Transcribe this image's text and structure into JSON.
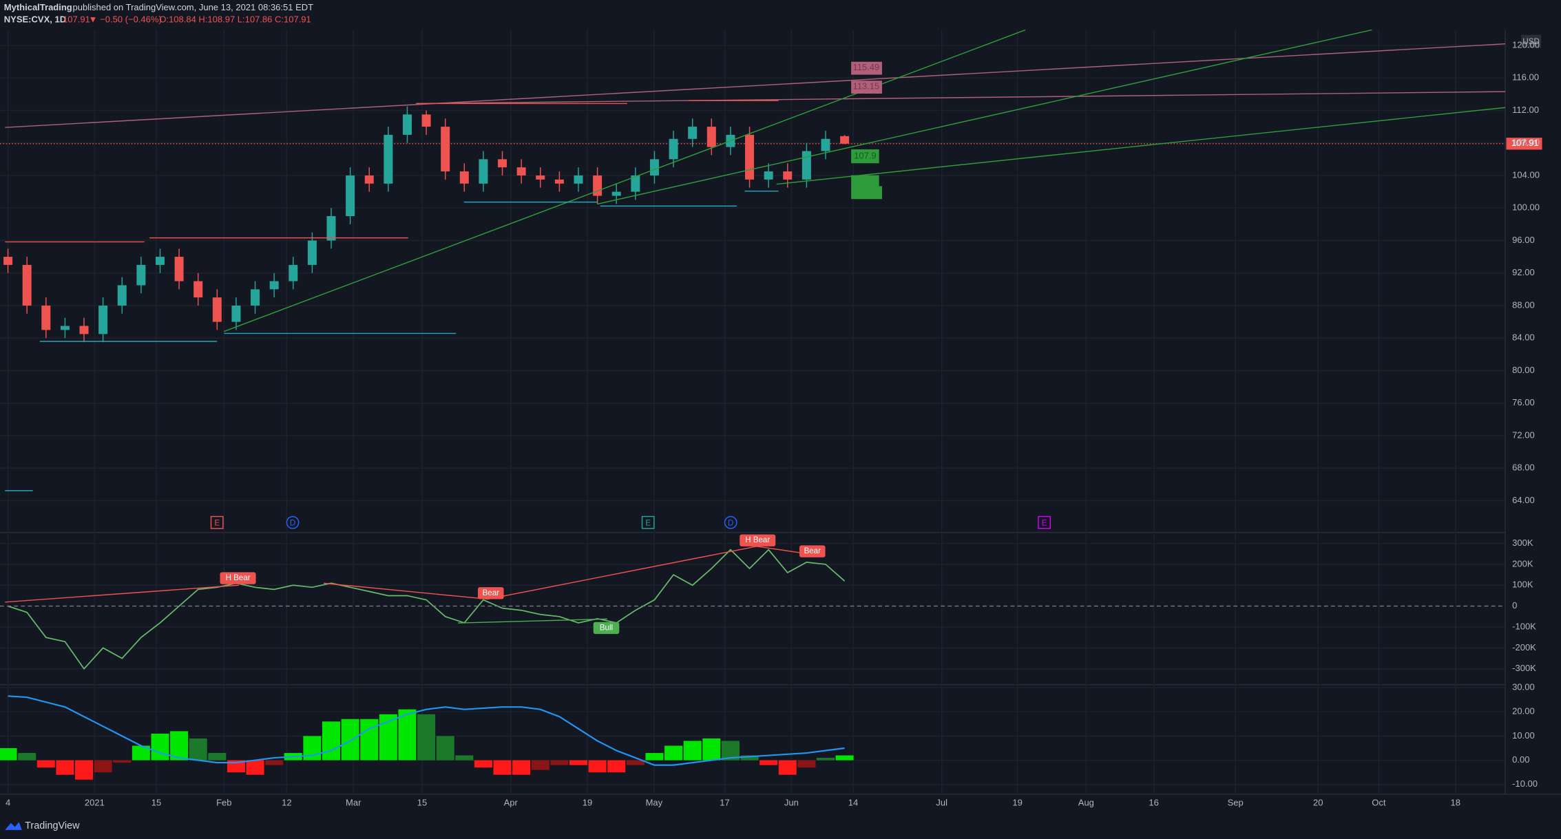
{
  "header": {
    "publisher": "MythicalTrading",
    "published": "published on TradingView.com, June 13, 2021 08:36:51 EDT",
    "symbol": "NYSE:CVX, 1D",
    "last": "107.91",
    "change": "▼ −0.50 (−0.46%)",
    "ohlc": "O:108.84 H:108.97 L:107.86 C:107.91"
  },
  "price_pane": {
    "currency": "USD",
    "ylim": [
      60.1,
      121.9
    ],
    "yticks": [
      {
        "value": 64,
        "label": "64.00"
      },
      {
        "value": 68,
        "label": "68.00"
      },
      {
        "value": 72,
        "label": "72.00"
      },
      {
        "value": 76,
        "label": "76.00"
      },
      {
        "value": 80,
        "label": "80.00"
      },
      {
        "value": 84,
        "label": "84.00"
      },
      {
        "value": 88,
        "label": "88.00"
      },
      {
        "value": 92,
        "label": "92.00"
      },
      {
        "value": 96,
        "label": "96.00"
      },
      {
        "value": 100,
        "label": "100.00"
      },
      {
        "value": 104,
        "label": "104.00"
      },
      {
        "value": 108,
        "label": "108.00"
      },
      {
        "value": 112,
        "label": "112.00"
      },
      {
        "value": 116,
        "label": "116.00"
      },
      {
        "value": 120,
        "label": "120.00"
      }
    ],
    "last_price": {
      "value": 107.91,
      "label": "107.91"
    },
    "up_color": "#26a69a",
    "down_color": "#ef5350",
    "candles": {
      "open": [
        94,
        93,
        88,
        85,
        85.5,
        84.5,
        88,
        90.5,
        93,
        94,
        91,
        89,
        86,
        88,
        90,
        91,
        93,
        96,
        99,
        104,
        103,
        109,
        111.5,
        110,
        104.5,
        103,
        106,
        105,
        104,
        103.5,
        103,
        104,
        101.5,
        102,
        104,
        106,
        108.5,
        110,
        107.5,
        109,
        103.5,
        104.5,
        103.5,
        107,
        108.84
      ],
      "high": [
        95,
        94,
        89,
        86.5,
        86.5,
        89,
        91.5,
        94,
        95,
        95,
        92,
        90,
        89,
        91,
        92,
        94,
        97,
        100,
        105,
        105,
        110,
        112.5,
        112,
        111,
        105.5,
        107,
        107,
        106,
        105,
        104.5,
        105,
        105,
        103,
        105,
        107,
        109.5,
        111,
        111,
        110,
        110,
        105.5,
        105.5,
        108,
        109.5,
        108.97
      ],
      "low": [
        92,
        87,
        84,
        84,
        83.5,
        83.5,
        87,
        89.5,
        92,
        90,
        88,
        85,
        85,
        87,
        89,
        90,
        92,
        95,
        98,
        102,
        102,
        108,
        109,
        103.5,
        102,
        102,
        104,
        103,
        102.5,
        102,
        102,
        100.5,
        100.5,
        101,
        103,
        105,
        107.5,
        106.5,
        106.5,
        102.5,
        102.5,
        102.5,
        102.5,
        106,
        107.86
      ],
      "close": [
        93,
        88,
        85,
        85.5,
        84.5,
        88,
        90.5,
        93,
        94,
        91,
        89,
        86,
        88,
        90,
        91,
        93,
        96,
        99,
        104,
        103,
        109,
        111.5,
        110,
        104.5,
        103,
        106,
        105,
        104,
        103.5,
        103,
        104,
        101.5,
        102,
        104,
        106,
        108.5,
        110,
        107.5,
        109,
        103.5,
        104.5,
        103.5,
        107,
        108.5,
        107.91
      ]
    },
    "drawing_labels": [
      "115.49",
      "113.15",
      "107.9"
    ],
    "events": [
      "E",
      "D",
      "E",
      "D",
      "E"
    ]
  },
  "oscillator_pane": {
    "ylim": [
      -376000,
      343000
    ],
    "yticks": [
      {
        "value": 300000,
        "label": "300K"
      },
      {
        "value": 200000,
        "label": "200K"
      },
      {
        "value": 100000,
        "label": "100K"
      },
      0,
      {
        "value": -100000,
        "label": "-100K"
      },
      {
        "value": -200000,
        "label": "-200K"
      },
      {
        "value": -300000,
        "label": "-300K"
      }
    ],
    "color": "#66bb6a",
    "values": [
      0,
      -30000,
      -150000,
      -170000,
      -300000,
      -200000,
      -250000,
      -150000,
      -80000,
      0,
      80000,
      90000,
      110000,
      90000,
      80000,
      100000,
      90000,
      110000,
      90000,
      70000,
      50000,
      50000,
      30000,
      -50000,
      -80000,
      30000,
      -10000,
      -20000,
      -40000,
      -50000,
      -80000,
      -60000,
      -80000,
      -20000,
      30000,
      150000,
      100000,
      180000,
      270000,
      180000,
      270000,
      160000,
      210000,
      200000,
      120000
    ],
    "divergence_labels": [
      "H Bear",
      "Bear",
      "Bull",
      "H Bear",
      "Bear"
    ]
  },
  "macd_pane": {
    "ylim": [
      -14,
      31.2
    ],
    "yticks": [
      {
        "value": 30,
        "label": "30.00"
      },
      {
        "value": 20,
        "label": "20.00"
      },
      {
        "value": 10,
        "label": "10.00"
      },
      {
        "value": 0,
        "label": "0.00"
      },
      {
        "value": -10,
        "label": "-10.00"
      }
    ],
    "histogram": [
      5,
      3,
      -3,
      -6,
      -8,
      -5,
      -1,
      6,
      11,
      12,
      9,
      3,
      -5,
      -6,
      -2,
      3,
      10,
      16,
      17,
      17,
      19,
      21,
      19,
      10,
      2,
      -3,
      -6,
      -6,
      -4,
      -2,
      -2,
      -5,
      -5,
      -2,
      3,
      6,
      8,
      9,
      8,
      2,
      -2,
      -6,
      -3,
      1,
      2
    ],
    "signal": [
      26.5,
      26,
      24,
      22,
      18,
      14,
      10,
      6,
      3,
      1,
      0,
      -1,
      -1,
      0,
      1,
      1.5,
      2,
      4,
      8,
      13,
      16,
      19,
      21,
      22,
      21,
      21.5,
      22,
      22,
      21,
      18,
      13,
      8,
      4,
      1,
      -2,
      -2,
      -1,
      0,
      1,
      1.5,
      2,
      2.5,
      3,
      4,
      5
    ],
    "signal_color": "#2196f3"
  },
  "time_axis": [
    "4",
    "2021",
    "15",
    "Feb",
    "12",
    "Mar",
    "15",
    "Apr",
    "19",
    "May",
    "17",
    "Jun",
    "14",
    "Jul",
    "19",
    "Aug",
    "16",
    "Sep",
    "20",
    "Oct",
    "18"
  ],
  "footer": {
    "brand": "TradingView"
  }
}
